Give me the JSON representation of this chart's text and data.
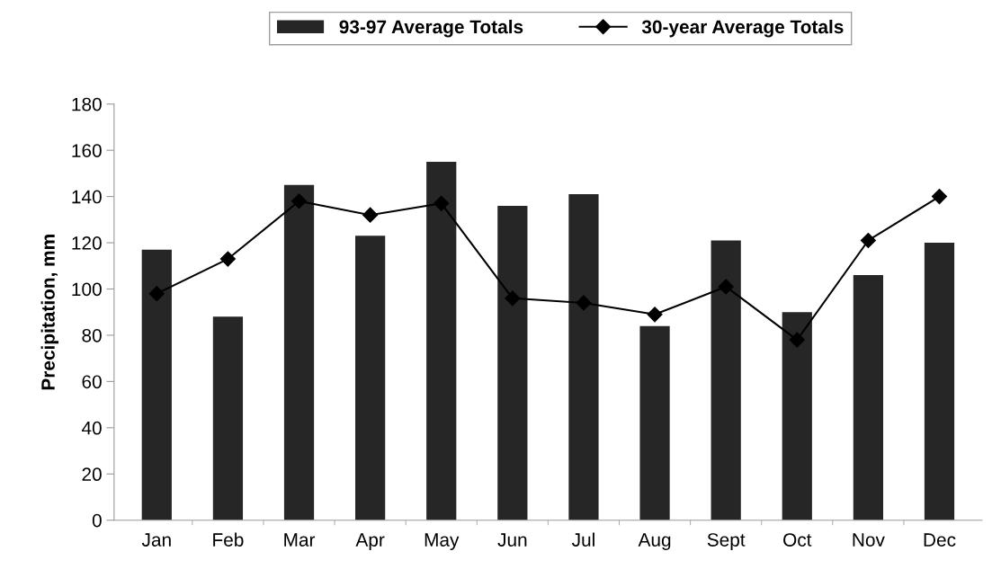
{
  "chart_data": {
    "type": "bar",
    "ylabel": "Precipitation, mm",
    "categories": [
      "Jan",
      "Feb",
      "Mar",
      "Apr",
      "May",
      "Jun",
      "Jul",
      "Aug",
      "Sept",
      "Oct",
      "Nov",
      "Dec"
    ],
    "series": [
      {
        "name": "93-97 Average Totals",
        "color": "#262626",
        "values": [
          117,
          88,
          145,
          123,
          155,
          136,
          141,
          84,
          121,
          90,
          106,
          120
        ]
      },
      {
        "name": "30-year Average Totals",
        "type": "line",
        "color": "#000000",
        "marker": "diamond",
        "line_style": "solid",
        "values": [
          98,
          113,
          138,
          132,
          137,
          96,
          94,
          89,
          101,
          78,
          121,
          140
        ]
      }
    ],
    "ylim": [
      0,
      180
    ],
    "yticks": [
      0,
      20,
      40,
      60,
      80,
      100,
      120,
      140,
      160,
      180
    ],
    "grid": false,
    "legend": "top"
  }
}
